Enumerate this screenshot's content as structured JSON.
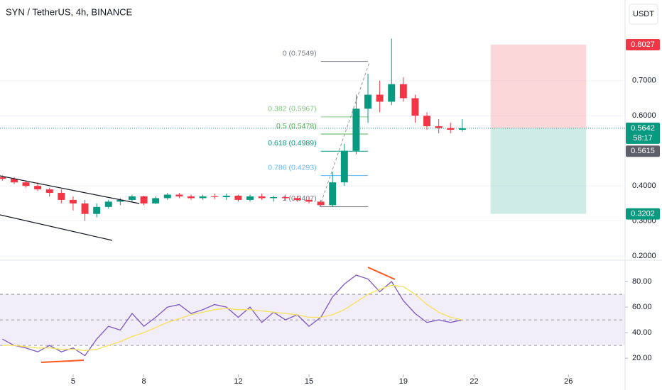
{
  "header": {
    "title": "SYN / TetherUS, 4h, BINANCE",
    "currency": "USDT"
  },
  "chart_data": [
    {
      "type": "candlestick",
      "xlim": [
        1.9,
        28.4
      ],
      "ylim": [
        0.192,
        0.93
      ],
      "yticks": [
        {
          "value": 0.2,
          "label": "0.2000"
        },
        {
          "value": 0.3,
          "label": "0.3000"
        },
        {
          "value": 0.4,
          "label": "0.4000"
        },
        {
          "value": 0.6,
          "label": "0.6000"
        },
        {
          "value": 0.7,
          "label": "0.7000"
        }
      ],
      "up_color": "#089981",
      "down_color": "#f23645",
      "x": [
        2,
        2.5,
        3,
        3.5,
        4,
        4.5,
        5,
        5.5,
        6,
        6.5,
        7,
        7.5,
        8,
        8.5,
        9,
        9.5,
        10,
        10.5,
        11,
        11.5,
        12,
        12.5,
        13,
        13.5,
        14,
        14.5,
        15,
        15.5,
        16,
        16.5,
        17,
        17.5,
        18,
        18.5,
        19,
        19.5,
        20,
        20.5,
        21,
        21.5
      ],
      "open": [
        0.425,
        0.42,
        0.41,
        0.4,
        0.39,
        0.38,
        0.36,
        0.35,
        0.32,
        0.34,
        0.355,
        0.36,
        0.37,
        0.35,
        0.365,
        0.375,
        0.37,
        0.365,
        0.37,
        0.368,
        0.372,
        0.36,
        0.37,
        0.365,
        0.368,
        0.365,
        0.36,
        0.355,
        0.345,
        0.41,
        0.5,
        0.62,
        0.66,
        0.64,
        0.69,
        0.65,
        0.6,
        0.57,
        0.565,
        0.56
      ],
      "high": [
        0.43,
        0.425,
        0.415,
        0.41,
        0.395,
        0.39,
        0.37,
        0.36,
        0.35,
        0.36,
        0.365,
        0.375,
        0.372,
        0.37,
        0.38,
        0.38,
        0.375,
        0.375,
        0.378,
        0.378,
        0.375,
        0.375,
        0.378,
        0.372,
        0.375,
        0.372,
        0.37,
        0.36,
        0.44,
        0.52,
        0.66,
        0.72,
        0.7,
        0.82,
        0.71,
        0.66,
        0.61,
        0.59,
        0.58,
        0.59
      ],
      "low": [
        0.415,
        0.405,
        0.395,
        0.385,
        0.37,
        0.35,
        0.33,
        0.3,
        0.31,
        0.335,
        0.345,
        0.355,
        0.345,
        0.348,
        0.36,
        0.365,
        0.36,
        0.36,
        0.362,
        0.36,
        0.355,
        0.355,
        0.36,
        0.355,
        0.36,
        0.355,
        0.35,
        0.34,
        0.34,
        0.4,
        0.49,
        0.58,
        0.61,
        0.63,
        0.64,
        0.58,
        0.56,
        0.55,
        0.55,
        0.555
      ],
      "close": [
        0.42,
        0.41,
        0.4,
        0.39,
        0.38,
        0.36,
        0.35,
        0.32,
        0.34,
        0.355,
        0.36,
        0.37,
        0.35,
        0.365,
        0.375,
        0.37,
        0.365,
        0.37,
        0.368,
        0.372,
        0.36,
        0.37,
        0.365,
        0.368,
        0.365,
        0.36,
        0.355,
        0.345,
        0.41,
        0.5,
        0.62,
        0.66,
        0.64,
        0.69,
        0.65,
        0.6,
        0.57,
        0.565,
        0.56,
        0.564
      ],
      "fib_levels": [
        {
          "label": "0 (0.7549)",
          "value": 0.7549,
          "color": "#787b86"
        },
        {
          "label": "0.382 (0.5967)",
          "value": 0.5967,
          "color": "#81c784"
        },
        {
          "label": "0.5 (0.5478)",
          "value": 0.5478,
          "color": "#4caf50"
        },
        {
          "label": "0.618 (0.4989)",
          "value": 0.4989,
          "color": "#089981"
        },
        {
          "label": "0.786 (0.4293)",
          "value": 0.4293,
          "color": "#64b5f6"
        },
        {
          "label": "1 (0.3407)",
          "value": 0.3407,
          "color": "#787b86"
        }
      ],
      "fib_x": [
        15.5,
        17.5
      ],
      "position": {
        "x": [
          22.7,
          26.75
        ],
        "stop": 0.8027,
        "entry": 0.5642,
        "target": 0.3202
      },
      "price_labels": [
        {
          "value": 0.8027,
          "label": "0.8027",
          "color": "#f23645"
        },
        {
          "value": 0.5642,
          "label": "0.5642",
          "countdown": "58:17",
          "color": "#089981"
        },
        {
          "value": 0.5615,
          "label": "0.5615",
          "color": "#5d606b"
        },
        {
          "value": 0.3202,
          "label": "0.3202",
          "color": "#089981"
        }
      ]
    },
    {
      "type": "line",
      "xlim": [
        1.9,
        28.4
      ],
      "ylim": [
        9,
        95
      ],
      "xticks": [
        5,
        8,
        12,
        15,
        19,
        22,
        26
      ],
      "yticks": [
        {
          "value": 20,
          "label": "20.00"
        },
        {
          "value": 40,
          "label": "40.00"
        },
        {
          "value": 60,
          "label": "60.00"
        },
        {
          "value": 80,
          "label": "80.00"
        }
      ],
      "bands": [
        30,
        50,
        70
      ],
      "x": [
        2,
        2.5,
        3,
        3.5,
        4,
        4.5,
        5,
        5.5,
        6,
        6.5,
        7,
        7.5,
        8,
        8.5,
        9,
        9.5,
        10,
        10.5,
        11,
        11.5,
        12,
        12.5,
        13,
        13.5,
        14,
        14.5,
        15,
        15.5,
        16,
        16.5,
        17,
        17.5,
        18,
        18.5,
        19,
        19.5,
        20,
        20.5,
        21,
        21.5
      ],
      "series": [
        {
          "color": "#7e57c2",
          "values": [
            35,
            30,
            28,
            25,
            30,
            25,
            28,
            22,
            35,
            45,
            42,
            55,
            45,
            52,
            60,
            62,
            55,
            58,
            62,
            60,
            52,
            60,
            48,
            56,
            50,
            54,
            45,
            52,
            68,
            78,
            85,
            82,
            72,
            80,
            65,
            55,
            48,
            50,
            48,
            50
          ]
        },
        {
          "color": "#f7e05a",
          "values": [
            30,
            30,
            29,
            28,
            28,
            27,
            27,
            26,
            27,
            30,
            33,
            37,
            40,
            44,
            48,
            51,
            54,
            56,
            58,
            59,
            58,
            58,
            57,
            56,
            55,
            54,
            52,
            52,
            54,
            58,
            64,
            70,
            74,
            77,
            76,
            70,
            62,
            56,
            52,
            50
          ]
        }
      ]
    }
  ]
}
